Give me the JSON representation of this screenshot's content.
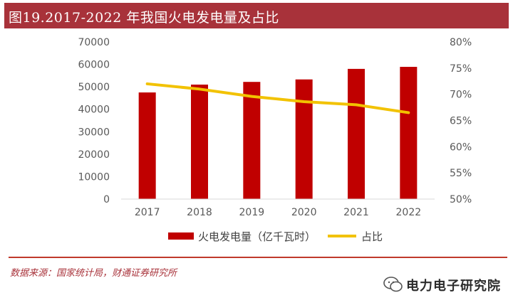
{
  "header": {
    "title": "图19.2017-2022 年我国火电发电量及占比"
  },
  "chart_data": {
    "type": "bar",
    "categories": [
      "2017",
      "2018",
      "2019",
      "2020",
      "2021",
      "2022"
    ],
    "series": [
      {
        "name": "火电发电量（亿千瓦时）",
        "kind": "bar",
        "axis": "left",
        "values": [
          47500,
          51000,
          52200,
          53300,
          58000,
          58900
        ]
      },
      {
        "name": "占比",
        "kind": "line",
        "axis": "right",
        "values": [
          72.0,
          71.0,
          69.6,
          68.6,
          68.0,
          66.5
        ]
      }
    ],
    "left_ticks": [
      "0",
      "10000",
      "20000",
      "30000",
      "40000",
      "50000",
      "60000",
      "70000"
    ],
    "right_ticks": [
      "50%",
      "55%",
      "60%",
      "65%",
      "70%",
      "75%",
      "80%"
    ],
    "ylim_left": [
      0,
      70000
    ],
    "ylim_right": [
      50,
      80
    ],
    "legend": [
      "火电发电量（亿千瓦时）",
      "占比"
    ],
    "colors": {
      "bar": "#c00000",
      "line": "#f2c200"
    }
  },
  "footer": {
    "source": "数据来源：国家统计局，财通证券研究所",
    "watermark": "电力电子研究院"
  }
}
